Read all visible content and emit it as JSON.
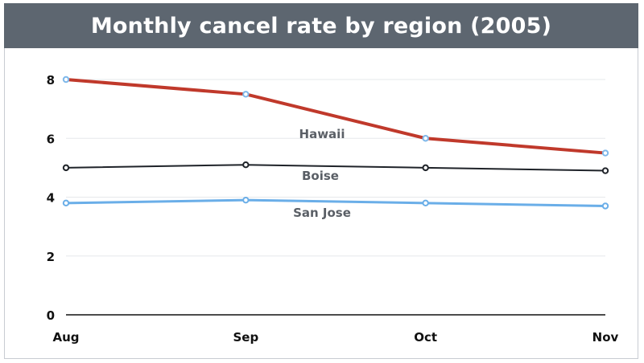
{
  "chart_data": {
    "type": "line",
    "title": "Monthly cancel rate by region (2005)",
    "xlabel": "",
    "ylabel": "",
    "categories": [
      "Aug",
      "Sep",
      "Oct",
      "Nov"
    ],
    "ylim": [
      0,
      8
    ],
    "yticks": [
      0,
      2,
      4,
      6,
      8
    ],
    "grid": true,
    "legend": "inline labels",
    "series": [
      {
        "name": "Hawaii",
        "values": [
          8.0,
          7.5,
          6.0,
          5.5
        ],
        "color": "#c0392b",
        "marker_color": "#7fb8ea"
      },
      {
        "name": "Boise",
        "values": [
          5.0,
          5.1,
          5.0,
          4.9
        ],
        "color": "#1f2329",
        "marker_color": "#1f2329"
      },
      {
        "name": "San Jose",
        "values": [
          3.8,
          3.9,
          3.8,
          3.7
        ],
        "color": "#6aaee8",
        "marker_color": "#6aaee8"
      }
    ]
  }
}
